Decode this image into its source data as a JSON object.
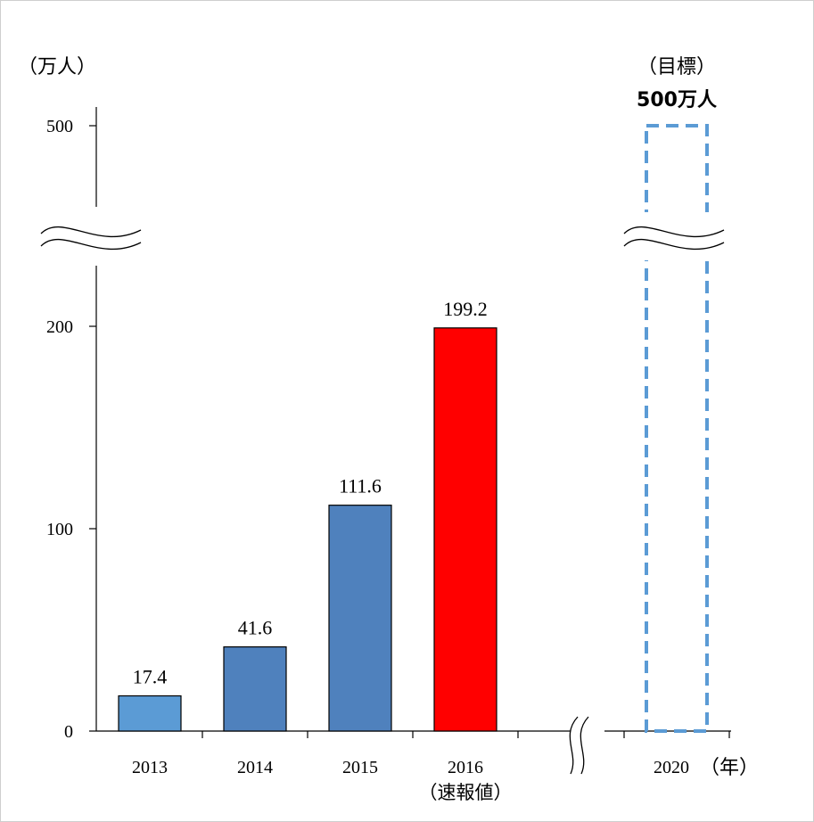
{
  "chart_data": {
    "type": "bar",
    "ylabel": "（万人）",
    "xlabel": "（年）",
    "categories": [
      "2013",
      "2014",
      "2015",
      "2016",
      "2020"
    ],
    "category_sublabels": [
      "",
      "",
      "",
      "（速報値）",
      ""
    ],
    "values": [
      17.4,
      41.6,
      111.6,
      199.2,
      500
    ],
    "value_labels": [
      "17.4",
      "41.6",
      "111.6",
      "199.2",
      "500万人"
    ],
    "target_label": "（目標）",
    "bar_colors": [
      "#5B9BD5",
      "#4F81BD",
      "#4F81BD",
      "#FF0000",
      "none"
    ],
    "target_outline_color": "#5B9BD5",
    "y_ticks": [
      0,
      100,
      200,
      500
    ],
    "ylim": [
      0,
      500
    ],
    "y_axis_break": true,
    "x_axis_break": true,
    "grid": false,
    "legend": "none"
  }
}
